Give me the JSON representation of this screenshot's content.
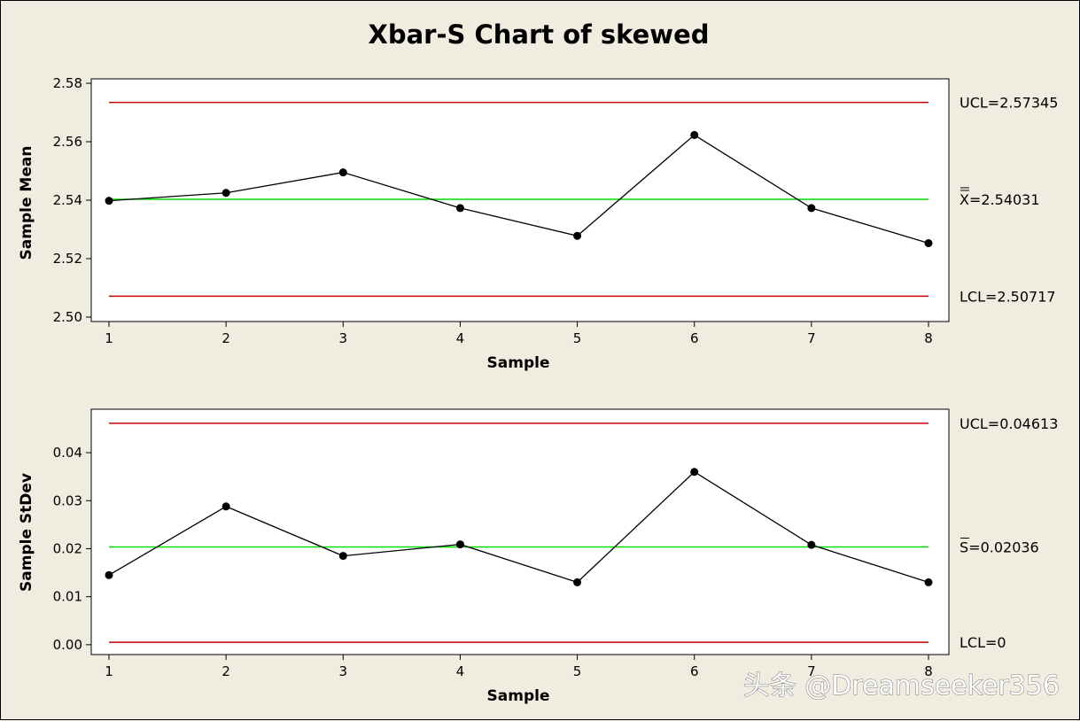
{
  "chart_data": [
    {
      "type": "line",
      "title": "Xbar-S Chart of skewed",
      "xlabel": "Sample",
      "ylabel": "Sample Mean",
      "x": [
        1,
        2,
        3,
        4,
        5,
        6,
        7,
        8
      ],
      "values": [
        2.5398,
        2.5425,
        2.5495,
        2.5373,
        2.5278,
        2.5623,
        2.5373,
        2.5253
      ],
      "ylim": [
        2.5,
        2.58
      ],
      "yticks": [
        "2.50",
        "2.52",
        "2.54",
        "2.56",
        "2.58"
      ],
      "xticks": [
        "1",
        "2",
        "3",
        "4",
        "5",
        "6",
        "7",
        "8"
      ],
      "ucl": 2.57345,
      "center": 2.54031,
      "lcl": 2.50717,
      "ucl_label": "UCL=2.57345",
      "center_label": "X=2.54031",
      "lcl_label": "LCL=2.50717",
      "line_colors": {
        "limits": "#cc0000",
        "center": "#00dd00",
        "data": "#000000"
      },
      "grid": false
    },
    {
      "type": "line",
      "xlabel": "Sample",
      "ylabel": "Sample StDev",
      "x": [
        1,
        2,
        3,
        4,
        5,
        6,
        7,
        8
      ],
      "values": [
        0.0145,
        0.0288,
        0.0185,
        0.0209,
        0.013,
        0.036,
        0.0208,
        0.013
      ],
      "ylim": [
        -0.0015,
        0.0485
      ],
      "yticks": [
        "0.00",
        "0.01",
        "0.02",
        "0.03",
        "0.04"
      ],
      "xticks": [
        "1",
        "2",
        "3",
        "4",
        "5",
        "6",
        "7",
        "8"
      ],
      "ucl": 0.04613,
      "center": 0.02036,
      "lcl": 0.0005,
      "ucl_label": "UCL=0.04613",
      "center_label": "S=0.02036",
      "lcl_label": "LCL=0",
      "line_colors": {
        "limits": "#cc0000",
        "center": "#00dd00",
        "data": "#000000"
      },
      "grid": false
    }
  ],
  "watermark": "头条 @Dreamseeker356"
}
